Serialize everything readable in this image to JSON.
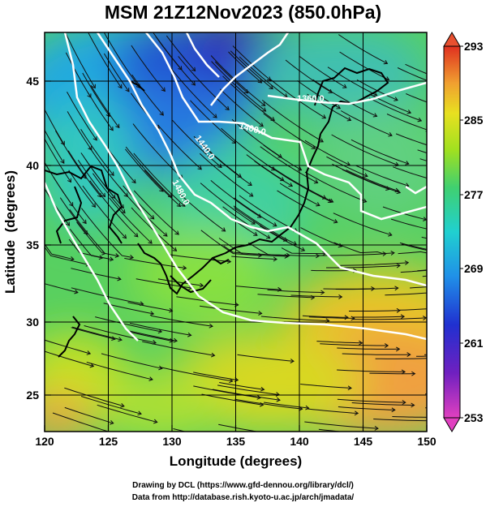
{
  "title": "MSM 21Z12Nov2023 (850.0hPa)",
  "axes": {
    "xlabel": "Longitude (degrees)",
    "ylabel": "Latitude  (degrees)",
    "xticks": [
      "120",
      "125",
      "130",
      "135",
      "140",
      "145",
      "150"
    ],
    "yticks": [
      "25",
      "30",
      "35",
      "40",
      "45"
    ],
    "xrange": [
      120,
      150
    ],
    "yrange": [
      22.4,
      47.6
    ]
  },
  "colorbar": {
    "ticks": [
      "293",
      "285",
      "277",
      "269",
      "261",
      "253"
    ],
    "range": [
      253,
      293
    ]
  },
  "contours": {
    "labels": [
      "1360.0",
      "1400.0",
      "1440.0",
      "1480.0"
    ]
  },
  "credits": {
    "line1": "Drawing by DCL (https://www.gfd-dennou.org/library/dcl/)",
    "line2": "Data from http://database.rish.kyoto-u.ac.jp/arch/jmadata/"
  },
  "colors": {
    "warm": "#f0a040",
    "cold": "#2838c8",
    "contour": "#ffffff"
  }
}
